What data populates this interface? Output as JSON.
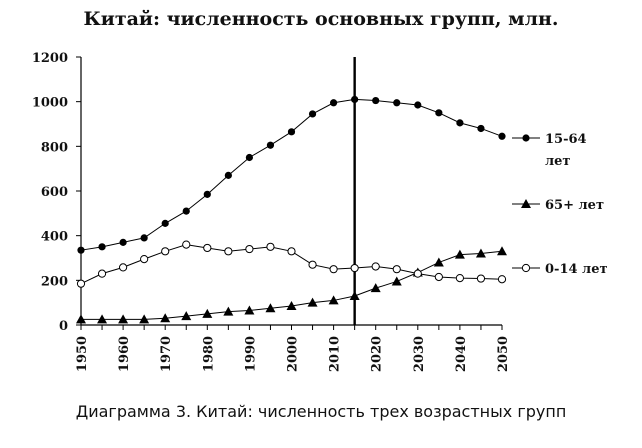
{
  "chart_data": {
    "type": "line",
    "title": "Китай: численность основных групп, млн.",
    "caption": "Диаграмма 3. Китай: численность трех возрастных групп",
    "ylim": [
      0,
      1200
    ],
    "yticks": [
      0,
      200,
      400,
      600,
      800,
      1000,
      1200
    ],
    "ytick_labels": [
      "0",
      "200",
      "400",
      "600",
      "800",
      "1000",
      "1200"
    ],
    "xlim": [
      1950,
      2050
    ],
    "xticks": [
      1950,
      1960,
      1970,
      1980,
      1990,
      2000,
      2010,
      2020,
      2030,
      2040,
      2050
    ],
    "xtick_labels": [
      "1950",
      "1960",
      "1970",
      "1980",
      "1990",
      "2000",
      "2010",
      "2020",
      "2030",
      "2040",
      "2050"
    ],
    "vertical_line_x": 2015,
    "grid": false,
    "legend_position": "right",
    "x": [
      1950,
      1955,
      1960,
      1965,
      1970,
      1975,
      1980,
      1985,
      1990,
      1995,
      2000,
      2005,
      2010,
      2015,
      2020,
      2025,
      2030,
      2035,
      2040,
      2045,
      2050
    ],
    "series": [
      {
        "name_lines": [
          "15-64",
          "лет"
        ],
        "marker": "filled-circle",
        "values": [
          335,
          350,
          370,
          390,
          455,
          510,
          585,
          670,
          750,
          805,
          865,
          945,
          995,
          1010,
          1005,
          995,
          985,
          950,
          905,
          880,
          845
        ]
      },
      {
        "name_lines": [
          "65+ лет"
        ],
        "marker": "filled-triangle",
        "values": [
          25,
          25,
          25,
          25,
          30,
          40,
          50,
          60,
          65,
          75,
          85,
          100,
          110,
          130,
          165,
          195,
          235,
          280,
          315,
          320,
          330
        ]
      },
      {
        "name_lines": [
          "0-14 лет"
        ],
        "marker": "open-circle",
        "values": [
          185,
          230,
          258,
          295,
          330,
          360,
          345,
          330,
          340,
          350,
          330,
          270,
          250,
          255,
          262,
          250,
          230,
          215,
          210,
          208,
          205
        ]
      }
    ]
  }
}
